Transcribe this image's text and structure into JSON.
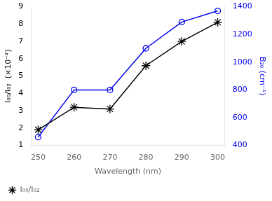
{
  "chart_data": {
    "type": "line",
    "x": [
      250,
      260,
      270,
      280,
      290,
      300
    ],
    "xlabel": "Wavelength (nm)",
    "ylabel": "I₀₀/I₀₂  (×10⁻²)",
    "y2label": "B₂₀ (cm⁻¹)",
    "series": [
      {
        "name": "I₀₀/I₀₂",
        "color": "#000000",
        "marker": "star",
        "values": [
          1.9,
          3.2,
          3.1,
          5.6,
          7.0,
          8.1
        ]
      },
      {
        "color": "#0000ee",
        "marker": "circle",
        "axis": "y2",
        "values": [
          460,
          800,
          800,
          1100,
          1290,
          1370
        ]
      }
    ],
    "xlim": [
      248,
      302
    ],
    "xticks": [
      250,
      260,
      270,
      280,
      290,
      300
    ],
    "ylim": [
      1,
      9
    ],
    "yticks": [
      1,
      2,
      3,
      4,
      5,
      6,
      7,
      8,
      9
    ],
    "y2lim": [
      400,
      1400
    ],
    "y2ticks": [
      400,
      600,
      800,
      1000,
      1200,
      1400
    ],
    "grid": false,
    "legend": "lower left"
  }
}
